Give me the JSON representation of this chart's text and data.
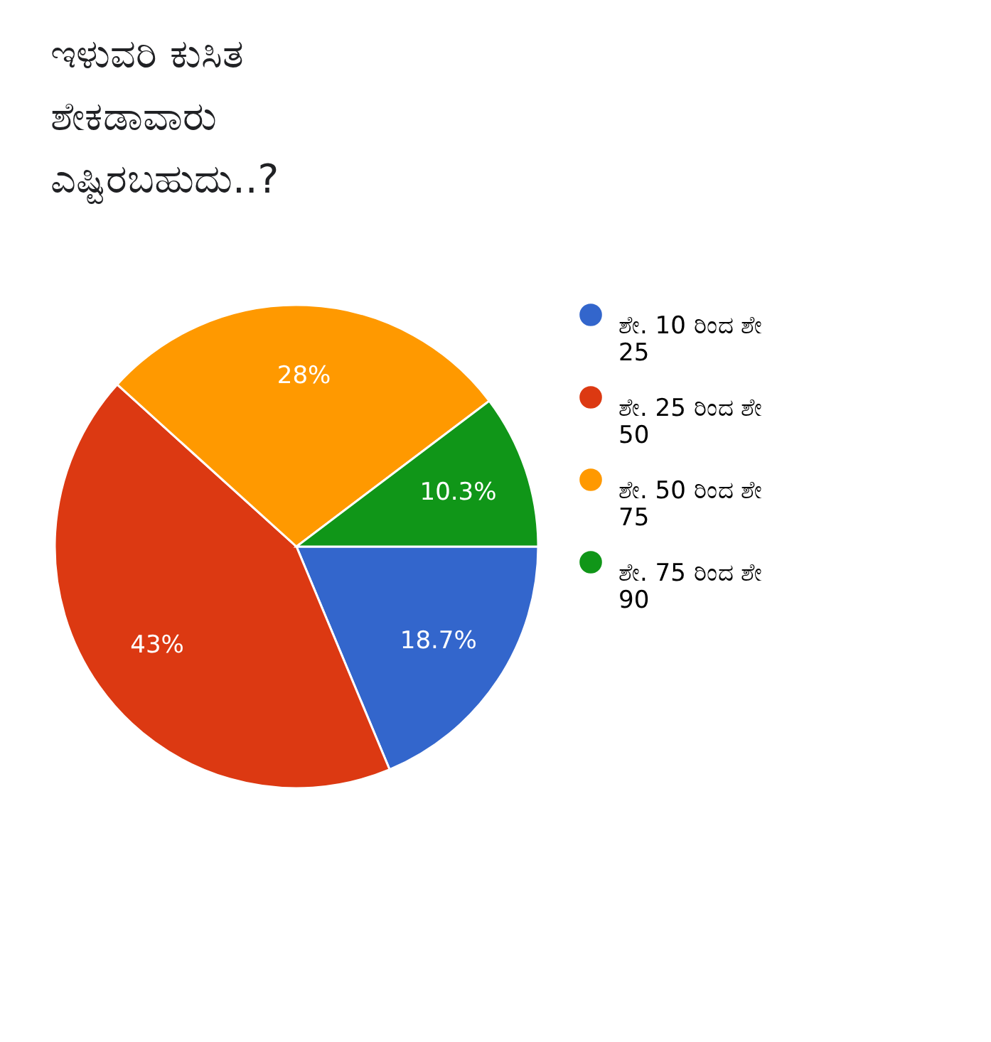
{
  "chart_data": {
    "type": "pie",
    "title": "ಇಳುವರಿ ಕುಸಿತ ಶೇಕಡಾವಾರು ಎಷ್ಟಿರಬಹುದು..?",
    "categories": [
      "ಶೇ. 10 ರಿಂದ ಶೇ 25",
      "ಶೇ. 25 ರಿಂದ ಶೇ 50",
      "ಶೇ. 50 ರಿಂದ ಶೇ 75",
      "ಶೇ. 75 ರಿಂದ ಶೇ 90"
    ],
    "values": [
      18.7,
      43,
      28,
      10.3
    ],
    "colors": [
      "#3366cc",
      "#dc3912",
      "#ff9900",
      "#109618"
    ],
    "value_labels": [
      "18.7%",
      "43%",
      "28%",
      "10.3%"
    ],
    "legend": "right"
  }
}
